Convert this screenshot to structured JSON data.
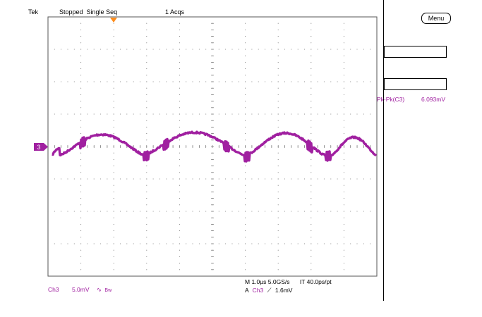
{
  "header": {
    "brand": "Tek",
    "run_state": "Stopped",
    "mode": "Single Seq",
    "acquisitions": "1 Acqs"
  },
  "menu_button": "Menu",
  "measurement": {
    "label": "Pk-Pk(C3)",
    "value": "6.093mV"
  },
  "channel_marker": "3",
  "channel_settings": {
    "channel": "Ch3",
    "scale": "5.0mV",
    "bw_symbol": "∿",
    "bw": "Bw"
  },
  "timebase": {
    "text": "M 1.0µs 5.0GS/s",
    "record": "IT 40.0ps/pt"
  },
  "trigger": {
    "prefix": "A",
    "source": "Ch3",
    "slope": "⟋",
    "level": "1.6mV"
  },
  "colors": {
    "trace": "#a020a0",
    "grid_dots": "#777777",
    "trigger_marker": "#ff8c1a"
  }
}
